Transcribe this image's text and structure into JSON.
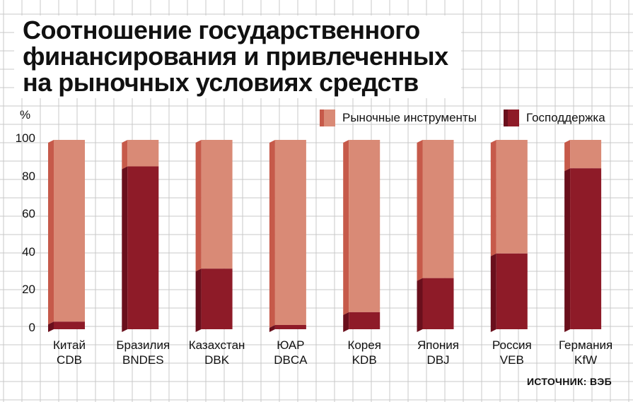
{
  "title_lines": [
    "Соотношение государственного",
    "финансирования и привлеченных",
    "на рыночных условиях средств"
  ],
  "source": "ИСТОЧНИК: ВЭБ",
  "colors": {
    "market": "#d98a76",
    "market_side": "#c65a4a",
    "state": "#8e1b28",
    "state_side": "#6a0f1c",
    "grid": "#c8c8c8"
  },
  "chart_data": {
    "type": "bar",
    "stacked": true,
    "ylabel": "%",
    "ylim": [
      0,
      100
    ],
    "yticks": [
      "0",
      "20",
      "40",
      "60",
      "80",
      "100"
    ],
    "categories": [
      [
        "Китай",
        "CDB"
      ],
      [
        "Бразилия",
        "BNDES"
      ],
      [
        "Казахстан",
        "DBK"
      ],
      [
        "ЮАР",
        "DBCA"
      ],
      [
        "Корея",
        "KDB"
      ],
      [
        "Япония",
        "DBJ"
      ],
      [
        "Россия",
        "VEB"
      ],
      [
        "Германия",
        "KfW"
      ]
    ],
    "series": [
      {
        "name": "Господдержка",
        "values": [
          4,
          86,
          32,
          0,
          9,
          27,
          40,
          85
        ]
      },
      {
        "name": "Рыночные инструменты",
        "values": [
          96,
          14,
          68,
          100,
          91,
          73,
          60,
          15
        ]
      }
    ],
    "legend_position": "top-right"
  }
}
